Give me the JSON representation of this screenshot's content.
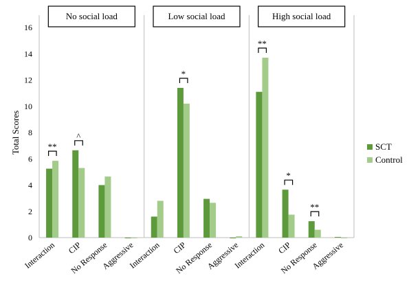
{
  "chart_data": {
    "type": "bar",
    "ylabel": "Total Scores",
    "ylim": [
      0,
      16
    ],
    "yticks": [
      "0",
      "2",
      "4",
      "6",
      "8",
      "10",
      "12",
      "14",
      "16"
    ],
    "grid": false,
    "legend_position": "right",
    "panels": [
      {
        "title": "No social load",
        "categories": [
          "Interaction",
          "CIP",
          "No Response",
          "Aggressive"
        ],
        "series": [
          {
            "name": "SCT",
            "values": [
              5.25,
              6.65,
              4.0,
              0.0
            ]
          },
          {
            "name": "Control",
            "values": [
              5.85,
              5.3,
              4.65,
              0.0
            ]
          }
        ],
        "significance": [
          {
            "category": "Interaction",
            "label": "**"
          },
          {
            "category": "CIP",
            "label": "^"
          }
        ]
      },
      {
        "title": "Low social load",
        "categories": [
          "Interaction",
          "CIP",
          "No Response",
          "Aggressive"
        ],
        "series": [
          {
            "name": "SCT",
            "values": [
              1.6,
              11.4,
              2.95,
              0.0
            ]
          },
          {
            "name": "Control",
            "values": [
              2.8,
              10.2,
              2.65,
              0.1
            ]
          }
        ],
        "significance": [
          {
            "category": "CIP",
            "label": "*"
          }
        ]
      },
      {
        "title": "High social load",
        "categories": [
          "Interaction",
          "CIP",
          "No Response",
          "Aggressive"
        ],
        "series": [
          {
            "name": "SCT",
            "values": [
              11.1,
              3.65,
              1.25,
              0.05
            ]
          },
          {
            "name": "Control",
            "values": [
              13.7,
              1.75,
              0.6,
              0.0
            ]
          }
        ],
        "significance": [
          {
            "category": "Interaction",
            "label": "**"
          },
          {
            "category": "CIP",
            "label": "*"
          },
          {
            "category": "No Response",
            "label": "**"
          }
        ]
      }
    ],
    "legend": [
      {
        "name": "SCT",
        "color": "#5d9a3c"
      },
      {
        "name": "Control",
        "color": "#a3cc8b"
      }
    ]
  }
}
